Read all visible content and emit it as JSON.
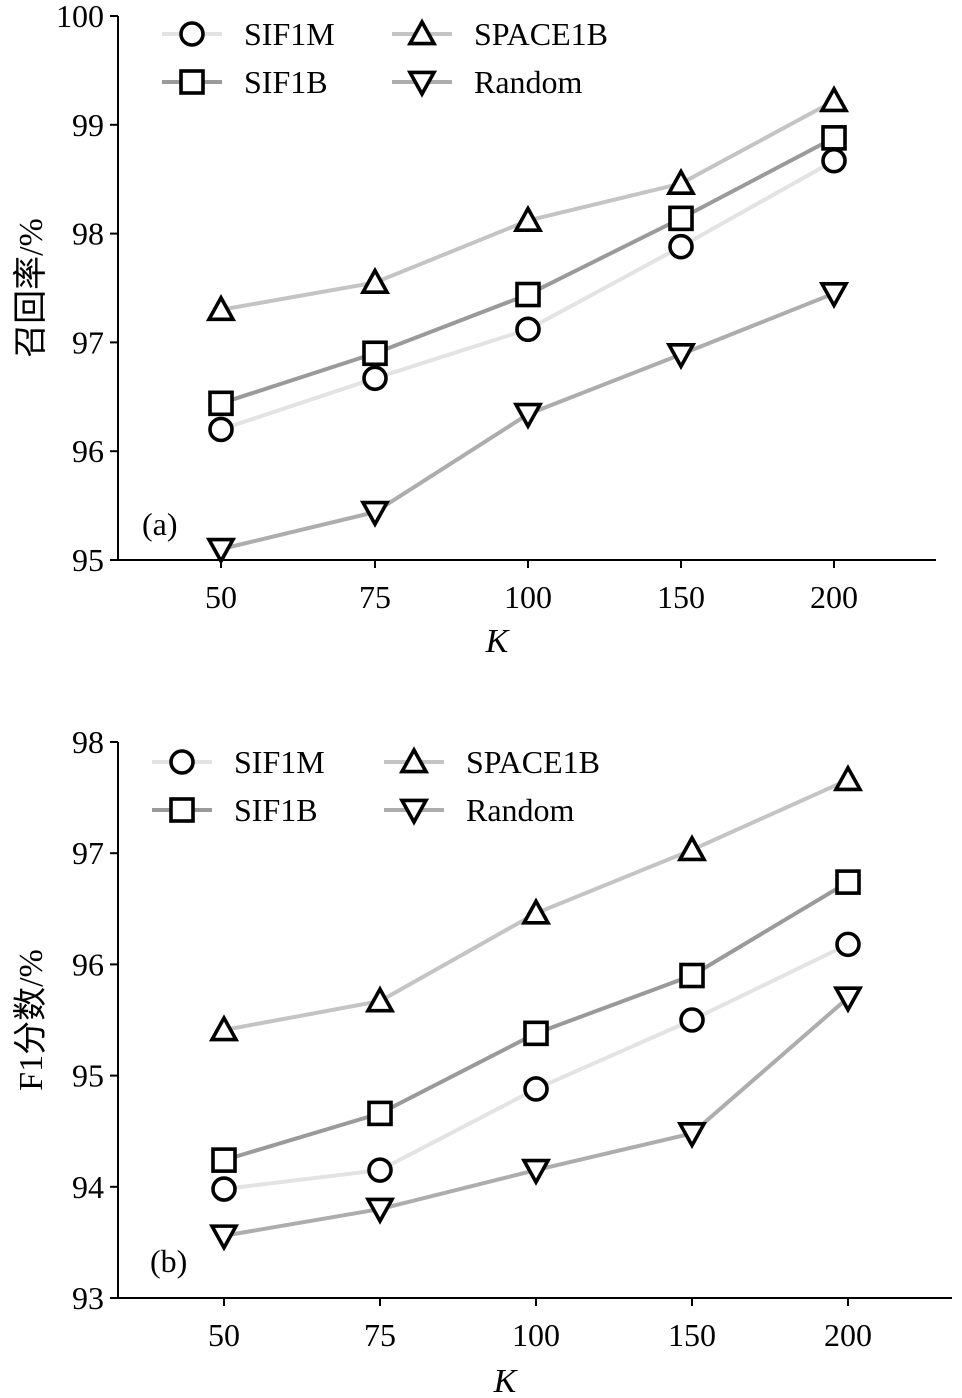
{
  "chart_data": [
    {
      "type": "line",
      "panel_label": "(a)",
      "xlabel": "K",
      "ylabel": "召回率/%",
      "categories": [
        "50",
        "75",
        "100",
        "150",
        "200"
      ],
      "ylim": [
        95,
        100
      ],
      "yticks": [
        "95",
        "96",
        "97",
        "98",
        "99",
        "100"
      ],
      "grid": false,
      "legend_placement": "top-left",
      "series": [
        {
          "name": "SIF1M",
          "marker": "circle",
          "color": "#e3e3e3",
          "values": [
            96.2,
            96.67,
            97.12,
            97.88,
            98.67
          ]
        },
        {
          "name": "SIF1B",
          "marker": "square",
          "color": "#9a9a9a",
          "values": [
            96.44,
            96.9,
            97.44,
            98.14,
            98.88
          ]
        },
        {
          "name": "SPACE1B",
          "marker": "triangle-up",
          "color": "#c4c4c4",
          "values": [
            97.3,
            97.55,
            98.12,
            98.46,
            99.22
          ]
        },
        {
          "name": "Random",
          "marker": "triangle-down",
          "color": "#adadad",
          "values": [
            95.1,
            95.44,
            96.34,
            96.89,
            97.45
          ]
        }
      ]
    },
    {
      "type": "line",
      "panel_label": "(b)",
      "xlabel": "K",
      "ylabel": "F1分数/%",
      "categories": [
        "50",
        "75",
        "100",
        "150",
        "200"
      ],
      "ylim": [
        93,
        98
      ],
      "yticks": [
        "93",
        "94",
        "95",
        "96",
        "97",
        "98"
      ],
      "grid": false,
      "legend_placement": "top-left",
      "series": [
        {
          "name": "SIF1M",
          "marker": "circle",
          "color": "#e3e3e3",
          "values": [
            93.98,
            94.15,
            94.88,
            95.5,
            96.18
          ]
        },
        {
          "name": "SIF1B",
          "marker": "square",
          "color": "#9a9a9a",
          "values": [
            94.24,
            94.66,
            95.38,
            95.9,
            96.74
          ]
        },
        {
          "name": "SPACE1B",
          "marker": "triangle-up",
          "color": "#c4c4c4",
          "values": [
            95.41,
            95.67,
            96.46,
            97.03,
            97.66
          ]
        },
        {
          "name": "Random",
          "marker": "triangle-down",
          "color": "#adadad",
          "values": [
            93.56,
            93.8,
            94.15,
            94.48,
            95.7
          ]
        }
      ]
    }
  ]
}
